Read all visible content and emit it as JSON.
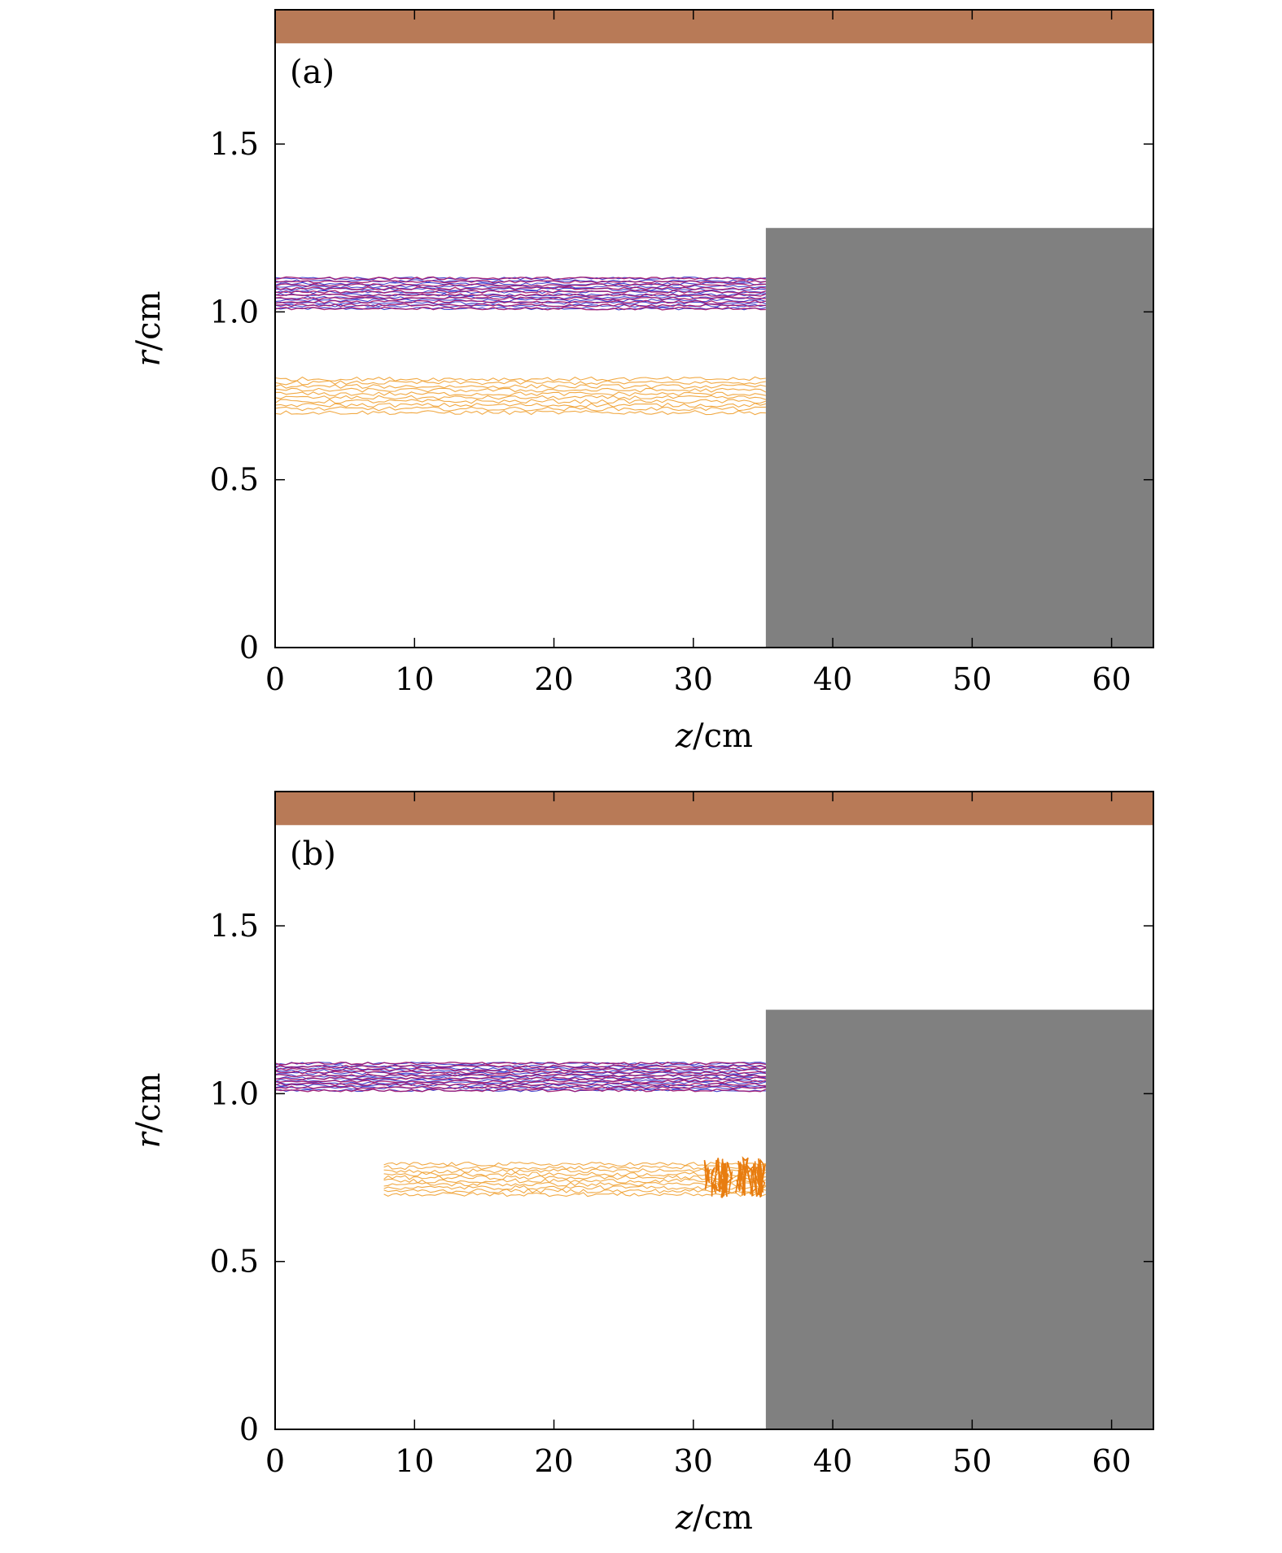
{
  "chart_data": [
    {
      "type": "scatter",
      "panel_label": "(a)",
      "xlabel_var": "z",
      "xlabel_unit": "/cm",
      "ylabel_var": "r",
      "ylabel_unit": "/cm",
      "xlim": [
        0,
        63
      ],
      "ylim": [
        0,
        1.9
      ],
      "xticks": [
        0,
        10,
        20,
        30,
        40,
        50,
        60
      ],
      "xtick_labels": [
        "0",
        "10",
        "20",
        "30",
        "40",
        "50",
        "60"
      ],
      "yticks": [
        0,
        0.5,
        1.0,
        1.5
      ],
      "ytick_labels": [
        "0",
        "0.5",
        "1.0",
        "1.5"
      ],
      "grid": false,
      "regions": [
        {
          "name": "outer-wall",
          "color": "#b87a57",
          "z": [
            0,
            63
          ],
          "r": [
            1.8,
            1.9
          ]
        },
        {
          "name": "block",
          "color": "#808080",
          "z": [
            35.2,
            63
          ],
          "r": [
            0,
            1.25
          ]
        }
      ],
      "series": [
        {
          "kind": "electron-trajectories",
          "color": "#2f2fc8",
          "z": [
            0,
            35.2
          ],
          "r": [
            1.01,
            1.1
          ],
          "lines": 12
        },
        {
          "kind": "electron-trajectories",
          "color": "#a0146e",
          "z": [
            0,
            35.2
          ],
          "r": [
            1.01,
            1.1
          ],
          "lines": 10
        },
        {
          "kind": "ion-trajectories",
          "color": "#f0a030",
          "z": [
            0,
            35.2
          ],
          "r": [
            0.7,
            0.8
          ],
          "lines": 10
        }
      ]
    },
    {
      "type": "scatter",
      "panel_label": "(b)",
      "xlabel_var": "z",
      "xlabel_unit": "/cm",
      "ylabel_var": "r",
      "ylabel_unit": "/cm",
      "xlim": [
        0,
        63
      ],
      "ylim": [
        0,
        1.9
      ],
      "xticks": [
        0,
        10,
        20,
        30,
        40,
        50,
        60
      ],
      "xtick_labels": [
        "0",
        "10",
        "20",
        "30",
        "40",
        "50",
        "60"
      ],
      "yticks": [
        0,
        0.5,
        1.0,
        1.5
      ],
      "ytick_labels": [
        "0",
        "0.5",
        "1.0",
        "1.5"
      ],
      "grid": false,
      "regions": [
        {
          "name": "outer-wall",
          "color": "#b87a57",
          "z": [
            0,
            63
          ],
          "r": [
            1.8,
            1.9
          ]
        },
        {
          "name": "block",
          "color": "#808080",
          "z": [
            35.2,
            63
          ],
          "r": [
            0,
            1.25
          ]
        }
      ],
      "series": [
        {
          "kind": "electron-trajectories",
          "color": "#2f2fc8",
          "z": [
            0,
            35.2
          ],
          "r": [
            1.01,
            1.09
          ],
          "lines": 12
        },
        {
          "kind": "electron-trajectories",
          "color": "#a0146e",
          "z": [
            0,
            35.2
          ],
          "r": [
            1.01,
            1.09
          ],
          "lines": 10
        },
        {
          "kind": "ion-trajectories",
          "color": "#f0a030",
          "z": [
            7.8,
            35.2
          ],
          "r": [
            0.7,
            0.79
          ],
          "lines": 10,
          "oscillation_z": [
            31,
            35
          ]
        }
      ]
    }
  ]
}
